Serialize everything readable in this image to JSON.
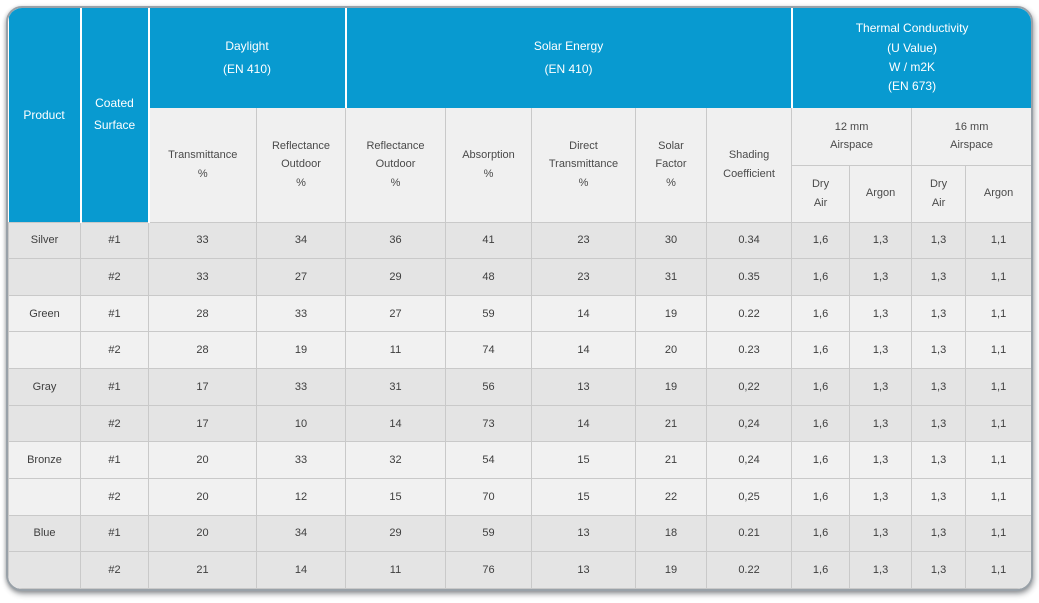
{
  "colors": {
    "header_blue": "#089ad0",
    "header_text": "#ffffff",
    "subheader_bg": "#f0f0f0",
    "row_dark": "#e4e4e4",
    "row_light": "#f1f1f1",
    "border": "#c9c9c9",
    "frame_border": "#99a1a8"
  },
  "table": {
    "header": {
      "product": "Product",
      "coated_surface": "Coated Surface",
      "daylight": {
        "title": "Daylight",
        "std": "(EN 410)"
      },
      "solar": {
        "title": "Solar Energy",
        "std": "(EN 410)"
      },
      "thermal": {
        "lines": [
          "Thermal Conductivity",
          "(U Value)",
          "W / m2K",
          "(EN 673)"
        ]
      }
    },
    "subheaders": [
      {
        "lines": [
          "Transmittance",
          "%"
        ]
      },
      {
        "lines": [
          "Reflectance",
          "Outdoor",
          "%"
        ]
      },
      {
        "lines": [
          "Reflectance",
          "Outdoor",
          "%"
        ]
      },
      {
        "lines": [
          "Absorption",
          "%"
        ]
      },
      {
        "lines": [
          "Direct",
          "Transmittance",
          "%"
        ]
      },
      {
        "lines": [
          "Solar",
          "Factor",
          "%"
        ]
      },
      {
        "lines": [
          "Shading",
          "Coefficient"
        ]
      }
    ],
    "airspace": [
      {
        "lines": [
          "12 mm",
          "Airspace"
        ]
      },
      {
        "lines": [
          "16 mm",
          "Airspace"
        ]
      }
    ],
    "gas": [
      {
        "lines": [
          "Dry",
          "Air"
        ]
      },
      {
        "lines": [
          "Argon"
        ]
      },
      {
        "lines": [
          "Dry",
          "Air"
        ]
      },
      {
        "lines": [
          "Argon"
        ]
      }
    ],
    "rows": [
      {
        "product": "Silver",
        "surface": "#1",
        "values": [
          "33",
          "34",
          "36",
          "41",
          "23",
          "30",
          "0.34",
          "1,6",
          "1,3",
          "1,3",
          "1,1"
        ]
      },
      {
        "product": "",
        "surface": "#2",
        "values": [
          "33",
          "27",
          "29",
          "48",
          "23",
          "31",
          "0.35",
          "1,6",
          "1,3",
          "1,3",
          "1,1"
        ]
      },
      {
        "product": "Green",
        "surface": "#1",
        "values": [
          "28",
          "33",
          "27",
          "59",
          "14",
          "19",
          "0.22",
          "1,6",
          "1,3",
          "1,3",
          "1,1"
        ]
      },
      {
        "product": "",
        "surface": "#2",
        "values": [
          "28",
          "19",
          "11",
          "74",
          "14",
          "20",
          "0.23",
          "1,6",
          "1,3",
          "1,3",
          "1,1"
        ]
      },
      {
        "product": "Gray",
        "surface": "#1",
        "values": [
          "17",
          "33",
          "31",
          "56",
          "13",
          "19",
          "0,22",
          "1,6",
          "1,3",
          "1,3",
          "1,1"
        ]
      },
      {
        "product": "",
        "surface": "#2",
        "values": [
          "17",
          "10",
          "14",
          "73",
          "14",
          "21",
          "0,24",
          "1,6",
          "1,3",
          "1,3",
          "1,1"
        ]
      },
      {
        "product": "Bronze",
        "surface": "#1",
        "values": [
          "20",
          "33",
          "32",
          "54",
          "15",
          "21",
          "0,24",
          "1,6",
          "1,3",
          "1,3",
          "1,1"
        ]
      },
      {
        "product": "",
        "surface": "#2",
        "values": [
          "20",
          "12",
          "15",
          "70",
          "15",
          "22",
          "0,25",
          "1,6",
          "1,3",
          "1,3",
          "1,1"
        ]
      },
      {
        "product": "Blue",
        "surface": "#1",
        "values": [
          "20",
          "34",
          "29",
          "59",
          "13",
          "18",
          "0.21",
          "1,6",
          "1,3",
          "1,3",
          "1,1"
        ]
      },
      {
        "product": "",
        "surface": "#2",
        "values": [
          "21",
          "14",
          "11",
          "76",
          "13",
          "19",
          "0.22",
          "1,6",
          "1,3",
          "1,3",
          "1,1"
        ]
      }
    ]
  },
  "chart_data": {
    "type": "table",
    "title": "Coated glass performance data",
    "column_groups": [
      "Daylight (EN 410)",
      "Solar Energy (EN 410)",
      "Thermal Conductivity (U Value) W / m2K (EN 673)"
    ],
    "columns": [
      "Product",
      "Coated Surface",
      "Daylight Transmittance %",
      "Daylight Reflectance Outdoor %",
      "Solar Reflectance Outdoor %",
      "Solar Absorption %",
      "Solar Direct Transmittance %",
      "Solar Factor %",
      "Shading Coefficient",
      "12 mm Airspace Dry Air",
      "12 mm Airspace Argon",
      "16 mm Airspace Dry Air",
      "16 mm Airspace Argon"
    ],
    "rows": [
      [
        "Silver",
        "#1",
        "33",
        "34",
        "36",
        "41",
        "23",
        "30",
        "0.34",
        "1,6",
        "1,3",
        "1,3",
        "1,1"
      ],
      [
        "Silver",
        "#2",
        "33",
        "27",
        "29",
        "48",
        "23",
        "31",
        "0.35",
        "1,6",
        "1,3",
        "1,3",
        "1,1"
      ],
      [
        "Green",
        "#1",
        "28",
        "33",
        "27",
        "59",
        "14",
        "19",
        "0.22",
        "1,6",
        "1,3",
        "1,3",
        "1,1"
      ],
      [
        "Green",
        "#2",
        "28",
        "19",
        "11",
        "74",
        "14",
        "20",
        "0.23",
        "1,6",
        "1,3",
        "1,3",
        "1,1"
      ],
      [
        "Gray",
        "#1",
        "17",
        "33",
        "31",
        "56",
        "13",
        "19",
        "0,22",
        "1,6",
        "1,3",
        "1,3",
        "1,1"
      ],
      [
        "Gray",
        "#2",
        "17",
        "10",
        "14",
        "73",
        "14",
        "21",
        "0,24",
        "1,6",
        "1,3",
        "1,3",
        "1,1"
      ],
      [
        "Bronze",
        "#1",
        "20",
        "33",
        "32",
        "54",
        "15",
        "21",
        "0,24",
        "1,6",
        "1,3",
        "1,3",
        "1,1"
      ],
      [
        "Bronze",
        "#2",
        "20",
        "12",
        "15",
        "70",
        "15",
        "22",
        "0,25",
        "1,6",
        "1,3",
        "1,3",
        "1,1"
      ],
      [
        "Blue",
        "#1",
        "20",
        "34",
        "29",
        "59",
        "13",
        "18",
        "0.21",
        "1,6",
        "1,3",
        "1,3",
        "1,1"
      ],
      [
        "Blue",
        "#2",
        "21",
        "14",
        "11",
        "76",
        "13",
        "19",
        "0.22",
        "1,6",
        "1,3",
        "1,3",
        "1,1"
      ]
    ]
  }
}
